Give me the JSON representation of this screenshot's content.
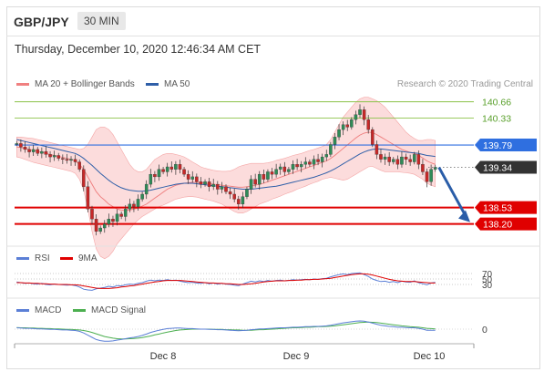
{
  "header": {
    "pair": "GBP/JPY",
    "timeframe": "30 MIN"
  },
  "timestamp": "Thursday, December 10, 2020 12:46:34 AM CET",
  "legend": {
    "main": [
      {
        "label": "MA 20 + Bollinger Bands",
        "color": "#f08080"
      },
      {
        "label": "MA 50",
        "color": "#2f5fa8"
      }
    ],
    "credit": "Research © 2020 Trading Central",
    "rsi": [
      {
        "label": "RSI",
        "color": "#5b7fd6"
      },
      {
        "label": "9MA",
        "color": "#e00000"
      }
    ],
    "macd": [
      {
        "label": "MACD",
        "color": "#5b7fd6"
      },
      {
        "label": "MACD Signal",
        "color": "#4caf50"
      }
    ]
  },
  "colors": {
    "up": "#2e8b57",
    "down": "#c62828",
    "bands": "#fbd0d0",
    "support": "#e00000",
    "resistance": "#8bc34a",
    "pivot": "#2f6fe0",
    "last": "#333333",
    "arrow": "#2a5da8"
  },
  "chart_data": [
    {
      "type": "candlestick",
      "x_labels": [
        "Dec 8",
        "Dec 9",
        "Dec 10"
      ],
      "ylim": [
        137.9,
        140.8
      ],
      "levels": [
        {
          "value": 140.66,
          "label": "140.66",
          "kind": "resistance"
        },
        {
          "value": 140.33,
          "label": "140.33",
          "kind": "resistance"
        },
        {
          "value": 139.79,
          "label": "139.79",
          "kind": "pivot"
        },
        {
          "value": 139.34,
          "label": "139.34",
          "kind": "last"
        },
        {
          "value": 138.53,
          "label": "138.53",
          "kind": "support"
        },
        {
          "value": 138.2,
          "label": "138.20",
          "kind": "support"
        }
      ],
      "close": [
        139.82,
        139.75,
        139.7,
        139.65,
        139.7,
        139.62,
        139.66,
        139.6,
        139.55,
        139.58,
        139.52,
        139.5,
        139.48,
        139.5,
        139.45,
        139.3,
        138.95,
        138.5,
        138.3,
        138.05,
        138.12,
        138.2,
        138.3,
        138.25,
        138.4,
        138.35,
        138.5,
        138.6,
        138.55,
        138.7,
        138.8,
        139.0,
        139.2,
        139.15,
        139.3,
        139.25,
        139.35,
        139.3,
        139.4,
        139.3,
        139.2,
        139.1,
        139.15,
        139.05,
        139.0,
        139.05,
        138.95,
        139.0,
        138.9,
        138.95,
        138.85,
        138.8,
        138.7,
        138.6,
        138.75,
        138.9,
        139.1,
        139.0,
        139.2,
        139.1,
        139.25,
        139.2,
        139.3,
        139.35,
        139.25,
        139.3,
        139.4,
        139.35,
        139.4,
        139.45,
        139.4,
        139.5,
        139.45,
        139.55,
        139.6,
        139.8,
        139.95,
        140.1,
        140.2,
        140.15,
        140.3,
        140.4,
        140.5,
        140.3,
        140.1,
        139.8,
        139.6,
        139.5,
        139.55,
        139.45,
        139.5,
        139.4,
        139.55,
        139.5,
        139.45,
        139.6,
        139.4,
        139.25,
        139.05,
        139.3,
        139.34
      ],
      "ma20": [
        139.75,
        139.74,
        139.72,
        139.7,
        139.68,
        139.66,
        139.64,
        139.62,
        139.6,
        139.58,
        139.56,
        139.54,
        139.52,
        139.5,
        139.47,
        139.4,
        139.3,
        139.15,
        139.0,
        138.85,
        138.75,
        138.68,
        138.6,
        138.55,
        138.5,
        138.48,
        138.47,
        138.48,
        138.5,
        138.52,
        138.56,
        138.6,
        138.66,
        138.72,
        138.78,
        138.84,
        138.9,
        138.94,
        138.98,
        139.0,
        139.02,
        139.03,
        139.04,
        139.04,
        139.03,
        139.02,
        139.01,
        139.0,
        138.99,
        138.98,
        138.97,
        138.96,
        138.95,
        138.94,
        138.94,
        138.95,
        138.96,
        138.98,
        139.0,
        139.02,
        139.05,
        139.08,
        139.11,
        139.14,
        139.17,
        139.2,
        139.23,
        139.26,
        139.29,
        139.32,
        139.35,
        139.38,
        139.41,
        139.44,
        139.47,
        139.52,
        139.58,
        139.65,
        139.72,
        139.79,
        139.86,
        139.93,
        139.99,
        140.03,
        140.05,
        140.04,
        140.0,
        139.95,
        139.9,
        139.85,
        139.8,
        139.75,
        139.7,
        139.67,
        139.64,
        139.62,
        139.58,
        139.53,
        139.47,
        139.43,
        139.4
      ],
      "bb_upper": [
        139.95,
        139.95,
        139.94,
        139.93,
        139.92,
        139.9,
        139.88,
        139.86,
        139.84,
        139.82,
        139.8,
        139.78,
        139.76,
        139.74,
        139.72,
        139.7,
        139.72,
        139.8,
        139.95,
        140.1,
        140.15,
        140.15,
        140.1,
        140.0,
        139.85,
        139.7,
        139.55,
        139.4,
        139.3,
        139.25,
        139.25,
        139.3,
        139.4,
        139.5,
        139.55,
        139.6,
        139.62,
        139.62,
        139.6,
        139.58,
        139.55,
        139.5,
        139.45,
        139.4,
        139.35,
        139.32,
        139.3,
        139.28,
        139.27,
        139.26,
        139.26,
        139.27,
        139.3,
        139.35,
        139.38,
        139.4,
        139.42,
        139.42,
        139.42,
        139.42,
        139.43,
        139.45,
        139.48,
        139.5,
        139.52,
        139.55,
        139.58,
        139.6,
        139.62,
        139.65,
        139.68,
        139.7,
        139.73,
        139.76,
        139.8,
        139.9,
        140.05,
        140.2,
        140.35,
        140.45,
        140.55,
        140.65,
        140.72,
        140.75,
        140.75,
        140.72,
        140.68,
        140.62,
        140.55,
        140.45,
        140.35,
        140.25,
        140.15,
        140.05,
        139.98,
        139.92,
        139.88,
        139.88,
        139.9,
        139.9,
        139.88
      ],
      "bb_lower": [
        139.55,
        139.53,
        139.5,
        139.47,
        139.44,
        139.42,
        139.4,
        139.38,
        139.36,
        139.34,
        139.32,
        139.3,
        139.28,
        139.26,
        139.22,
        139.1,
        138.88,
        138.5,
        138.05,
        137.7,
        137.55,
        137.5,
        137.55,
        137.65,
        137.8,
        137.9,
        138.0,
        138.1,
        138.2,
        138.28,
        138.35,
        138.4,
        138.45,
        138.5,
        138.55,
        138.58,
        138.62,
        138.66,
        138.7,
        138.72,
        138.74,
        138.75,
        138.75,
        138.74,
        138.72,
        138.7,
        138.68,
        138.66,
        138.63,
        138.6,
        138.55,
        138.5,
        138.45,
        138.42,
        138.42,
        138.45,
        138.5,
        138.55,
        138.6,
        138.63,
        138.66,
        138.7,
        138.73,
        138.76,
        138.8,
        138.83,
        138.86,
        138.9,
        138.93,
        138.96,
        139.0,
        139.03,
        139.06,
        139.1,
        139.12,
        139.14,
        139.12,
        139.1,
        139.08,
        139.1,
        139.15,
        139.2,
        139.25,
        139.3,
        139.35,
        139.36,
        139.32,
        139.28,
        139.25,
        139.25,
        139.25,
        139.25,
        139.24,
        139.23,
        139.22,
        139.2,
        139.15,
        139.1,
        139.02,
        138.98,
        138.95
      ],
      "ma50": [
        139.9,
        139.88,
        139.86,
        139.84,
        139.82,
        139.8,
        139.78,
        139.76,
        139.74,
        139.72,
        139.7,
        139.68,
        139.66,
        139.64,
        139.62,
        139.58,
        139.52,
        139.45,
        139.38,
        139.3,
        139.22,
        139.15,
        139.08,
        139.02,
        138.97,
        138.93,
        138.9,
        138.88,
        138.87,
        138.86,
        138.86,
        138.87,
        138.88,
        138.9,
        138.92,
        138.94,
        138.96,
        138.98,
        139.0,
        139.01,
        139.02,
        139.02,
        139.02,
        139.01,
        139.0,
        138.99,
        138.98,
        138.97,
        138.96,
        138.95,
        138.94,
        138.93,
        138.92,
        138.91,
        138.9,
        138.9,
        138.9,
        138.91,
        138.92,
        138.93,
        138.94,
        138.95,
        138.96,
        138.98,
        139.0,
        139.02,
        139.04,
        139.06,
        139.08,
        139.1,
        139.12,
        139.14,
        139.17,
        139.2,
        139.23,
        139.27,
        139.31,
        139.36,
        139.41,
        139.46,
        139.51,
        139.56,
        139.61,
        139.65,
        139.68,
        139.7,
        139.71,
        139.71,
        139.7,
        139.69,
        139.68,
        139.67,
        139.66,
        139.65,
        139.64,
        139.63,
        139.62,
        139.6,
        139.58,
        139.57,
        139.56
      ]
    },
    {
      "type": "line",
      "name": "RSI",
      "levels": [
        {
          "value": 70,
          "label": "70"
        },
        {
          "value": 50,
          "label": "50"
        },
        {
          "value": 30,
          "label": "30"
        }
      ],
      "ylim": [
        0,
        100
      ],
      "rsi": [
        52,
        50,
        48,
        49,
        47,
        46,
        48,
        45,
        44,
        46,
        45,
        44,
        43,
        44,
        42,
        38,
        32,
        30,
        29,
        33,
        35,
        37,
        40,
        38,
        42,
        41,
        44,
        46,
        45,
        48,
        50,
        54,
        57,
        55,
        57,
        56,
        58,
        56,
        57,
        54,
        52,
        50,
        51,
        49,
        48,
        50,
        47,
        49,
        46,
        48,
        46,
        45,
        43,
        42,
        46,
        50,
        54,
        52,
        55,
        53,
        56,
        54,
        56,
        57,
        55,
        56,
        58,
        57,
        58,
        59,
        58,
        60,
        59,
        61,
        62,
        66,
        69,
        72,
        74,
        72,
        75,
        76,
        77,
        72,
        67,
        60,
        56,
        53,
        54,
        51,
        53,
        50,
        54,
        52,
        51,
        55,
        50,
        47,
        44,
        49,
        51
      ],
      "ma9": [
        50,
        50,
        49,
        49,
        48,
        48,
        47,
        47,
        46,
        46,
        45,
        45,
        45,
        44,
        44,
        43,
        41,
        39,
        37,
        35,
        34,
        34,
        34,
        35,
        36,
        38,
        39,
        41,
        42,
        44,
        46,
        48,
        50,
        52,
        53,
        55,
        56,
        56,
        56,
        56,
        55,
        54,
        53,
        52,
        51,
        50,
        49,
        49,
        48,
        48,
        47,
        47,
        46,
        45,
        45,
        46,
        47,
        48,
        50,
        52,
        53,
        54,
        55,
        55,
        55,
        56,
        56,
        57,
        57,
        58,
        58,
        59,
        59,
        60,
        61,
        62,
        64,
        66,
        68,
        70,
        72,
        73,
        74,
        74,
        73,
        71,
        68,
        65,
        62,
        59,
        57,
        55,
        54,
        53,
        53,
        53,
        52,
        51,
        50,
        49,
        49
      ]
    },
    {
      "type": "line",
      "name": "MACD",
      "levels": [
        {
          "value": 0,
          "label": "0"
        }
      ],
      "ylim": [
        -0.6,
        0.4
      ],
      "macd": [
        0.05,
        0.04,
        0.03,
        0.03,
        0.02,
        0.01,
        0.01,
        0.0,
        -0.01,
        -0.01,
        -0.02,
        -0.03,
        -0.03,
        -0.04,
        -0.05,
        -0.08,
        -0.14,
        -0.22,
        -0.3,
        -0.38,
        -0.42,
        -0.44,
        -0.44,
        -0.43,
        -0.4,
        -0.38,
        -0.35,
        -0.32,
        -0.3,
        -0.27,
        -0.23,
        -0.18,
        -0.12,
        -0.08,
        -0.04,
        -0.01,
        0.02,
        0.03,
        0.04,
        0.04,
        0.03,
        0.02,
        0.02,
        0.01,
        0.0,
        0.0,
        -0.01,
        -0.01,
        -0.02,
        -0.02,
        -0.03,
        -0.04,
        -0.05,
        -0.06,
        -0.05,
        -0.04,
        -0.02,
        -0.01,
        0.01,
        0.01,
        0.02,
        0.03,
        0.04,
        0.05,
        0.05,
        0.06,
        0.07,
        0.07,
        0.08,
        0.09,
        0.09,
        0.1,
        0.1,
        0.11,
        0.12,
        0.14,
        0.17,
        0.2,
        0.23,
        0.25,
        0.27,
        0.29,
        0.3,
        0.29,
        0.26,
        0.22,
        0.18,
        0.14,
        0.12,
        0.1,
        0.09,
        0.07,
        0.07,
        0.06,
        0.05,
        0.05,
        0.03,
        0.0,
        -0.04,
        -0.04,
        -0.04
      ],
      "signal": [
        0.06,
        0.05,
        0.05,
        0.04,
        0.04,
        0.03,
        0.03,
        0.02,
        0.02,
        0.01,
        0.01,
        0.0,
        -0.01,
        -0.01,
        -0.02,
        -0.03,
        -0.05,
        -0.08,
        -0.12,
        -0.17,
        -0.22,
        -0.27,
        -0.3,
        -0.33,
        -0.35,
        -0.36,
        -0.36,
        -0.35,
        -0.34,
        -0.33,
        -0.31,
        -0.28,
        -0.25,
        -0.21,
        -0.18,
        -0.14,
        -0.11,
        -0.08,
        -0.05,
        -0.03,
        -0.02,
        -0.01,
        0.0,
        0.0,
        0.0,
        0.0,
        0.0,
        -0.01,
        -0.01,
        -0.01,
        -0.02,
        -0.02,
        -0.03,
        -0.03,
        -0.04,
        -0.04,
        -0.04,
        -0.03,
        -0.02,
        -0.02,
        -0.01,
        0.0,
        0.01,
        0.02,
        0.03,
        0.04,
        0.05,
        0.05,
        0.06,
        0.07,
        0.07,
        0.08,
        0.09,
        0.09,
        0.1,
        0.11,
        0.12,
        0.14,
        0.16,
        0.18,
        0.2,
        0.22,
        0.24,
        0.25,
        0.26,
        0.25,
        0.24,
        0.22,
        0.2,
        0.18,
        0.16,
        0.14,
        0.12,
        0.11,
        0.09,
        0.08,
        0.07,
        0.05,
        0.03,
        0.02,
        0.01
      ]
    }
  ]
}
